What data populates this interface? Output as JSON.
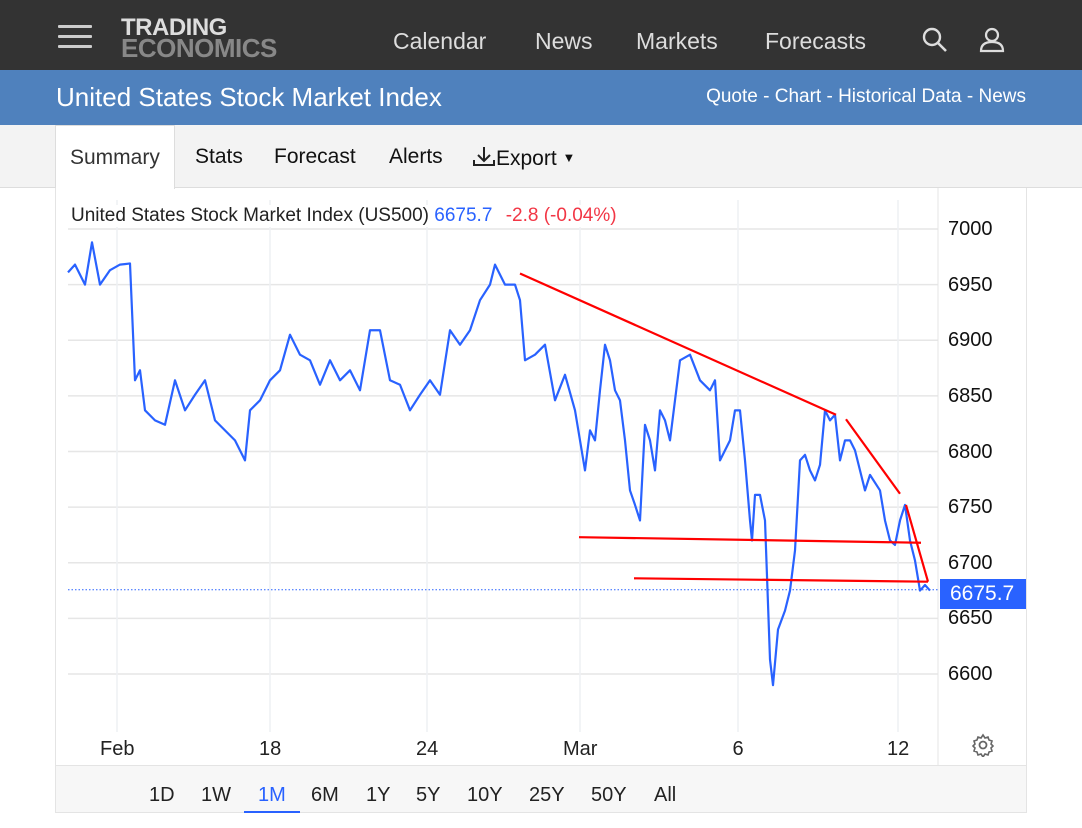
{
  "header": {
    "logo_line1": "TRADING",
    "logo_line2": "ECONOMICS",
    "nav": [
      "Calendar",
      "News",
      "Markets",
      "Forecasts"
    ]
  },
  "title_bar": {
    "title": "United States Stock Market Index",
    "links": "Quote - Chart - Historical Data - News"
  },
  "tabs": [
    "Summary",
    "Stats",
    "Forecast",
    "Alerts",
    "Export"
  ],
  "ranges": [
    "1D",
    "1W",
    "1M",
    "6M",
    "1Y",
    "5Y",
    "10Y",
    "25Y",
    "50Y",
    "All"
  ],
  "selected_range": "1M",
  "colors": {
    "line": "#2962ff",
    "trend": "#ff0000",
    "change": "#f23645"
  },
  "chart_data": {
    "type": "line",
    "title": "United States Stock Market Index (US500)",
    "last_price": "6675.7",
    "change": "-2.8",
    "change_pct": "(-0.04%)",
    "last_value": 6675.7,
    "ylim": [
      6550,
      7040
    ],
    "xlim": [
      0,
      87
    ],
    "yticks": [
      6600,
      6650,
      6700,
      6750,
      6800,
      6850,
      6900,
      6950,
      7000
    ],
    "xticks": [
      {
        "t": 4.9,
        "label": "Feb"
      },
      {
        "t": 20.2,
        "label": "18"
      },
      {
        "t": 35.9,
        "label": "24"
      },
      {
        "t": 51.2,
        "label": "Mar"
      },
      {
        "t": 67,
        "label": "6"
      },
      {
        "t": 83,
        "label": "12"
      }
    ],
    "series": [
      {
        "name": "US500",
        "points": [
          [
            0,
            6961
          ],
          [
            0.7,
            6968
          ],
          [
            1.7,
            6950
          ],
          [
            2.4,
            6988
          ],
          [
            3.2,
            6950
          ],
          [
            4.2,
            6963
          ],
          [
            5.2,
            6968
          ],
          [
            6.2,
            6969
          ],
          [
            6.7,
            6864
          ],
          [
            7.2,
            6873
          ],
          [
            7.7,
            6837
          ],
          [
            8.7,
            6828
          ],
          [
            9.7,
            6824
          ],
          [
            10.7,
            6864
          ],
          [
            11.7,
            6837
          ],
          [
            12.7,
            6851
          ],
          [
            13.7,
            6864
          ],
          [
            14.7,
            6828
          ],
          [
            15.7,
            6819
          ],
          [
            16.7,
            6810
          ],
          [
            17.7,
            6792
          ],
          [
            18.2,
            6837
          ],
          [
            19.2,
            6846
          ],
          [
            20.2,
            6864
          ],
          [
            21.2,
            6873
          ],
          [
            22.2,
            6905
          ],
          [
            23.2,
            6887
          ],
          [
            24.2,
            6882
          ],
          [
            25.2,
            6860
          ],
          [
            26.2,
            6882
          ],
          [
            27.2,
            6864
          ],
          [
            28.2,
            6873
          ],
          [
            29.2,
            6855
          ],
          [
            30.2,
            6909
          ],
          [
            31.2,
            6909
          ],
          [
            32.2,
            6864
          ],
          [
            33.2,
            6860
          ],
          [
            34.2,
            6837
          ],
          [
            35.2,
            6851
          ],
          [
            36.2,
            6864
          ],
          [
            37.2,
            6851
          ],
          [
            38.2,
            6909
          ],
          [
            39.2,
            6896
          ],
          [
            40.2,
            6909
          ],
          [
            41.2,
            6936
          ],
          [
            42.2,
            6950
          ],
          [
            42.7,
            6968
          ],
          [
            43.7,
            6950
          ],
          [
            44.7,
            6950
          ],
          [
            45.2,
            6936
          ],
          [
            45.7,
            6882
          ],
          [
            46.7,
            6887
          ],
          [
            47.7,
            6896
          ],
          [
            48.7,
            6846
          ],
          [
            49.7,
            6869
          ],
          [
            50.7,
            6837
          ],
          [
            51.2,
            6810
          ],
          [
            51.7,
            6783
          ],
          [
            52.2,
            6819
          ],
          [
            52.7,
            6810
          ],
          [
            53.2,
            6855
          ],
          [
            53.7,
            6896
          ],
          [
            54.2,
            6882
          ],
          [
            54.7,
            6855
          ],
          [
            55.2,
            6846
          ],
          [
            55.7,
            6810
          ],
          [
            56.2,
            6765
          ],
          [
            56.7,
            6752
          ],
          [
            57.2,
            6738
          ],
          [
            57.7,
            6824
          ],
          [
            58.2,
            6810
          ],
          [
            58.7,
            6783
          ],
          [
            59.2,
            6837
          ],
          [
            59.7,
            6828
          ],
          [
            60.2,
            6810
          ],
          [
            61.2,
            6882
          ],
          [
            62.2,
            6887
          ],
          [
            63.2,
            6864
          ],
          [
            64.2,
            6855
          ],
          [
            64.7,
            6864
          ],
          [
            65.2,
            6792
          ],
          [
            66.2,
            6810
          ],
          [
            66.7,
            6837
          ],
          [
            67.2,
            6837
          ],
          [
            67.7,
            6792
          ],
          [
            68.2,
            6738
          ],
          [
            68.4,
            6720
          ],
          [
            68.7,
            6761
          ],
          [
            69.2,
            6761
          ],
          [
            69.7,
            6738
          ],
          [
            70.2,
            6613
          ],
          [
            70.5,
            6590
          ],
          [
            71,
            6640
          ],
          [
            71.7,
            6657
          ],
          [
            72.2,
            6675
          ],
          [
            72.7,
            6711
          ],
          [
            73.2,
            6792
          ],
          [
            73.7,
            6797
          ],
          [
            74.2,
            6783
          ],
          [
            74.7,
            6774
          ],
          [
            75.2,
            6788
          ],
          [
            75.7,
            6837
          ],
          [
            76.2,
            6828
          ],
          [
            76.7,
            6833
          ],
          [
            77.2,
            6792
          ],
          [
            77.7,
            6810
          ],
          [
            78.2,
            6810
          ],
          [
            78.7,
            6801
          ],
          [
            79.2,
            6783
          ],
          [
            79.7,
            6765
          ],
          [
            80.2,
            6779
          ],
          [
            81.2,
            6765
          ],
          [
            81.7,
            6738
          ],
          [
            82.2,
            6720
          ],
          [
            82.7,
            6716
          ],
          [
            83.2,
            6738
          ],
          [
            83.7,
            6752
          ],
          [
            84.2,
            6720
          ],
          [
            84.7,
            6702
          ],
          [
            85.2,
            6675
          ],
          [
            85.7,
            6680
          ],
          [
            86.2,
            6675
          ]
        ]
      }
    ],
    "trend_lines": [
      [
        [
          45.2,
          6960
        ],
        [
          76.8,
          6833
        ]
      ],
      [
        [
          77.8,
          6829
        ],
        [
          83.2,
          6762
        ]
      ],
      [
        [
          51.1,
          6723
        ],
        [
          85.3,
          6718
        ]
      ],
      [
        [
          56.6,
          6686
        ],
        [
          86.0,
          6683
        ]
      ],
      [
        [
          83.8,
          6752
        ],
        [
          86.0,
          6683
        ]
      ]
    ]
  }
}
